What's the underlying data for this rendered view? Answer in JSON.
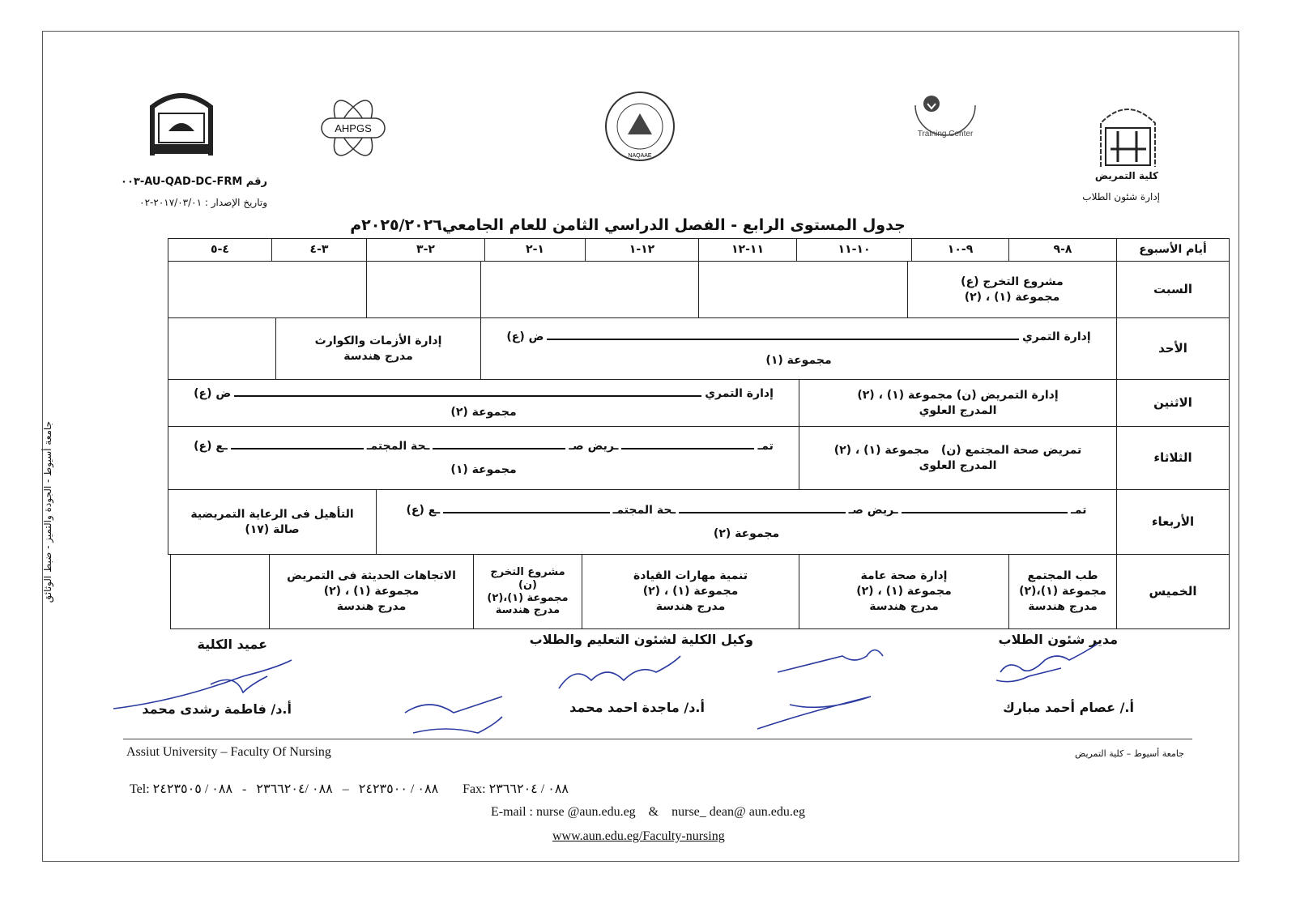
{
  "header": {
    "university_dept": {
      "faculty": "كلية التمريض",
      "office": "إدارة شئون الطلاب"
    },
    "form_code": "رقم AU-QAD-DC-FRM-٠٠٣",
    "issue_date": "وتاريخ الإصدار : ٢٠١٧/٠٣/٠١-٠٢",
    "logos": {
      "ahpgs": "AHPGS",
      "training_center": "Training Center",
      "naqaae": "NAQAAE",
      "faculty": "FACULTY OF NURSING"
    }
  },
  "title": "جدول المستوى الرابع - الفصل الدراسي الثامن للعام الجامعي٢٠٢٥/٢٠٢٦م",
  "side_text": "جامعة أسيوط - الجودة والتميز - ضبط الوثائق",
  "table": {
    "day_header": "أيام الأسبوع",
    "periods": [
      "٨-٩",
      "٩-١٠",
      "١٠-١١",
      "١١-١٢",
      "١٢-١",
      "١-٢",
      "٢-٣",
      "٣-٤",
      "٤-٥"
    ],
    "days": [
      "السبت",
      "الأحد",
      "الاثنين",
      "الثلاثاء",
      "الأربعاء",
      "الخميس"
    ],
    "sat": {
      "c1": {
        "title": "مشروع التخرج (ع)",
        "group": "مجموعة (١) ، (٢)"
      }
    },
    "sun": {
      "c1": {
        "title_start": "إدارة التمري",
        "title_end": "ض (ع)",
        "group": "مجموعة (١)"
      },
      "c2": {
        "title": "إدارة الأزمات والكوارث",
        "room": "مدرج هندسة"
      }
    },
    "mon": {
      "c1": {
        "title": "إدارة التمريض (ن) مجموعة (١) ، (٢)",
        "room": "المدرج العلوي"
      },
      "c2": {
        "title_start": "إدارة التمري",
        "title_end": "ض (ع)",
        "group": "مجموعة (٢)"
      }
    },
    "tue": {
      "c1": {
        "title": "تمريض صحة المجتمع (ن)   مجموعة (١) ، (٢)",
        "room": "المدرج العلوى"
      },
      "c2": {
        "title_start": "تمـ",
        "title_mid1": "ـريض صـ",
        "title_mid2": "ـحة المجتمـ",
        "title_end": "ـع (ع)",
        "group": "مجموعة (١)"
      }
    },
    "wed": {
      "c1": {
        "title_start": "تمـ",
        "title_mid1": "ـريض صـ",
        "title_mid2": "ـحة المجتمـ",
        "title_end": "ـع (ع)",
        "group": "مجموعة (٢)"
      },
      "c2": {
        "title": "التأهيل فى الرعاية التمريضية",
        "room": "صالة (١٧)"
      }
    },
    "thu": {
      "c1": {
        "title": "طب المجتمع",
        "group": "مجموعة (١)،(٢)",
        "room": "مدرج هندسة"
      },
      "c2": {
        "title": "إدارة صحة عامة",
        "group": "مجموعة (١) ، (٢)",
        "room": "مدرج هندسة"
      },
      "c3": {
        "title": "تنمية مهارات القيادة",
        "group": "مجموعة (١) ، (٢)",
        "room": "مدرج هندسة"
      },
      "c4": {
        "title": "مشروع التخرج",
        "type": "(ن)",
        "group": "مجموعة (١)،(٢)",
        "room": "مدرج هندسة"
      },
      "c5": {
        "title": "الاتجاهات الحديثة فى التمريض",
        "group": "مجموعة (١) ، (٢)",
        "room": "مدرج هندسة"
      }
    }
  },
  "signatures": [
    {
      "role": "مدير شئون الطلاب",
      "name": "أ./ عصام أحمد مبارك"
    },
    {
      "role": "وكيل الكلية لشئون التعليم والطلاب",
      "name": "أ.د/ ماجدة احمد محمد"
    },
    {
      "role": "عميد الكلية",
      "name": "أ.د/ فاطمة رشدى محمد"
    }
  ],
  "footer": {
    "left": "Assiut University  –  Faculty Of Nursing",
    "right": "جامعة أسيوط – كلية التمريض",
    "tel": "Tel: ٠٨٨ / ٢٤٢٣٥٠٠   –   ٠٨٨ /٢٣٦٦٢٠٤   -   ٠٨٨ / ٢٤٢٣٥٠٥",
    "fax": "Fax: ٠٨٨ / ٢٣٦٦٢٠٤",
    "email": "E-mail : nurse @aun.edu.eg    &    nurse_ dean@ aun.edu.eg",
    "website": "www.aun.edu.eg/Faculty-nursing"
  }
}
